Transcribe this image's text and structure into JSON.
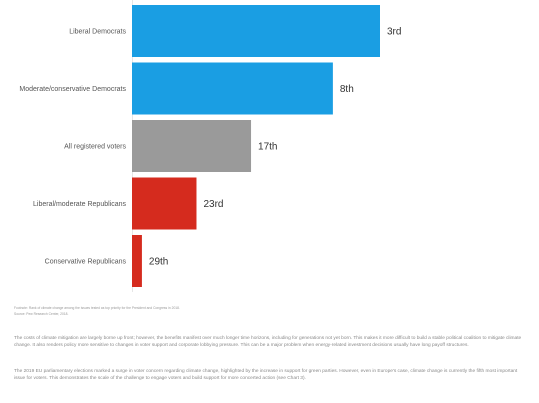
{
  "chart_data": {
    "type": "bar",
    "orientation": "horizontal",
    "categories": [
      "Liberal Democrats",
      "Moderate/conservative Democrats",
      "All registered voters",
      "Liberal/moderate Republicans",
      "Conservative Republicans"
    ],
    "values": [
      3,
      8,
      17,
      23,
      29
    ],
    "value_labels": [
      "3rd",
      "8th",
      "17th",
      "23rd",
      "29th"
    ],
    "bar_colors": [
      "#1a9ee3",
      "#1a9ee3",
      "#9a9a9a",
      "#d52b1e",
      "#d52b1e"
    ],
    "bar_widths_fraction": [
      1.0,
      0.81,
      0.48,
      0.26,
      0.04
    ]
  },
  "footnotes": [
    "Footnote: Rank of climate change among the issues tested as top priority for the President and Congress in 2018.",
    "Source: Pew Research Center, 2018."
  ],
  "paragraphs": [
    "The costs of climate mitigation are largely borne up front; however, the benefits manifest over much longer time horizons, including for generations not yet born. This makes it more difficult to build a stable political coalition to mitigate climate change. It also renders policy more sensitive to changes in voter support and corporate lobbying pressure. This can be a major problem when energy-related investment decisions usually have long payoff structures.",
    "The 2019 EU parliamentary elections marked a surge in voter concern regarding climate change, highlighted by the increase in support for green parties. However, even in Europe's case, climate change is currently the fifth most important issue for voters. This demonstrates the scale of the challenge to engage voters and build support for more concerted action (see Chart 3)."
  ]
}
